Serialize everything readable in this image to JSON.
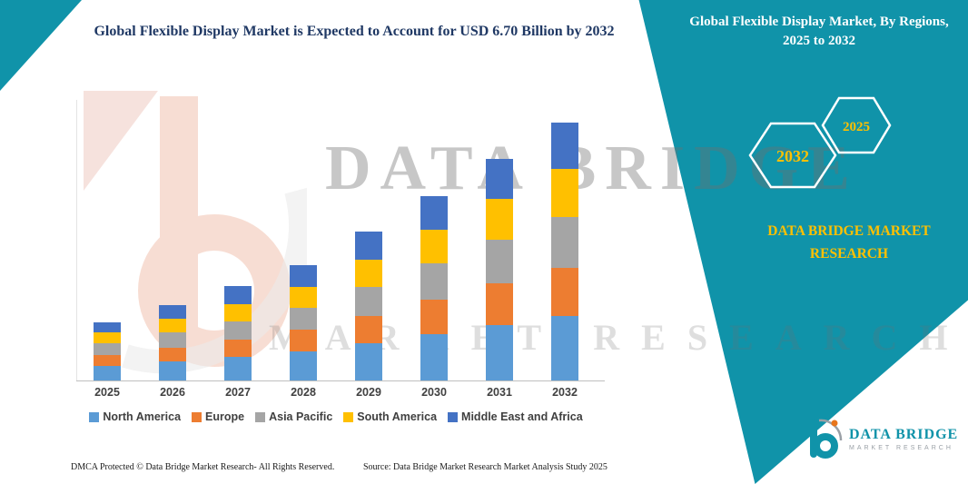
{
  "title": "Global Flexible Display Market is Expected to Account for USD 6.70 Billion by 2032",
  "side_panel": {
    "title": "Global Flexible Display Market, By Regions, 2025 to 2032",
    "hexagons": [
      "2032",
      "2025"
    ],
    "brand": "DATA BRIDGE MARKET RESEARCH"
  },
  "chart_data": {
    "type": "bar",
    "stacked": true,
    "title": "Global Flexible Display Market is Expected to Account for USD 6.70 Billion by 2032",
    "unit": "USD Billion",
    "categories": [
      "2025",
      "2026",
      "2027",
      "2028",
      "2029",
      "2030",
      "2031",
      "2032"
    ],
    "series": [
      {
        "name": "North America",
        "color": "#5B9BD5",
        "values": [
          0.4,
          0.52,
          0.63,
          0.77,
          0.98,
          1.22,
          1.46,
          1.69
        ]
      },
      {
        "name": "Europe",
        "color": "#ED7D31",
        "values": [
          0.28,
          0.36,
          0.45,
          0.56,
          0.71,
          0.89,
          1.08,
          1.25
        ]
      },
      {
        "name": "Asia Pacific",
        "color": "#A5A5A5",
        "values": [
          0.3,
          0.38,
          0.47,
          0.57,
          0.75,
          0.94,
          1.13,
          1.32
        ]
      },
      {
        "name": "South America",
        "color": "#FFC000",
        "values": [
          0.28,
          0.36,
          0.45,
          0.55,
          0.71,
          0.89,
          1.06,
          1.24
        ]
      },
      {
        "name": "Middle East and Africa",
        "color": "#4472C4",
        "values": [
          0.26,
          0.36,
          0.46,
          0.56,
          0.73,
          0.87,
          1.03,
          1.2
        ]
      }
    ],
    "totals": [
      1.52,
      1.98,
      2.46,
      3.01,
      3.88,
      4.81,
      5.76,
      6.7
    ],
    "ylim": [
      0,
      7
    ],
    "grid": false,
    "legend_position": "bottom",
    "xlabel": "",
    "ylabel": ""
  },
  "watermark": {
    "line1": "DATA BRIDGE",
    "line2": "MARKET RESEARCH"
  },
  "footer": {
    "dmca": "DMCA Protected © Data Bridge Market Research- All Rights Reserved.",
    "source": "Source: Data Bridge Market Research Market Analysis Study 2025"
  },
  "logo": {
    "name": "DATA BRIDGE",
    "sub": "MARKET RESEARCH"
  },
  "colors": {
    "teal": "#1093A9",
    "title_navy": "#1F3864",
    "accent_yellow": "#FFC000"
  }
}
